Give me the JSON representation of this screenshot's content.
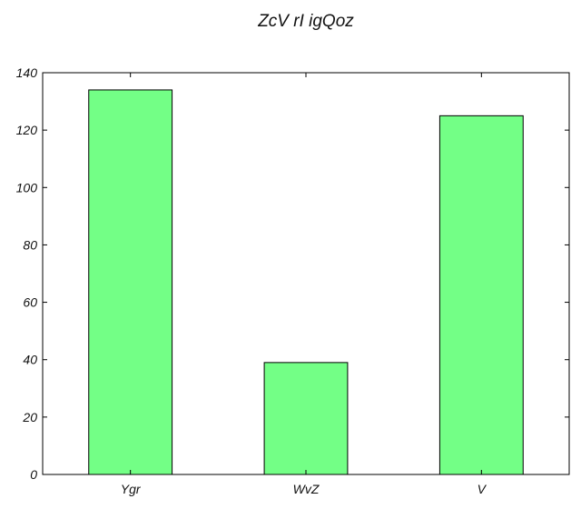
{
  "chart_data": {
    "type": "bar",
    "title": "ZcV rI igQoz",
    "xlabel": "",
    "ylabel": "",
    "categories": [
      "Ygr",
      "WvZ",
      "V"
    ],
    "values": [
      134,
      39,
      125
    ],
    "ylim": [
      0,
      140
    ],
    "yticks": [
      0,
      20,
      40,
      60,
      80,
      100,
      120,
      140
    ],
    "grid": false,
    "legend": "none",
    "colors": {
      "bar_fill": "#73ff86",
      "bar_stroke": "#000000",
      "axes": "#000000"
    }
  }
}
